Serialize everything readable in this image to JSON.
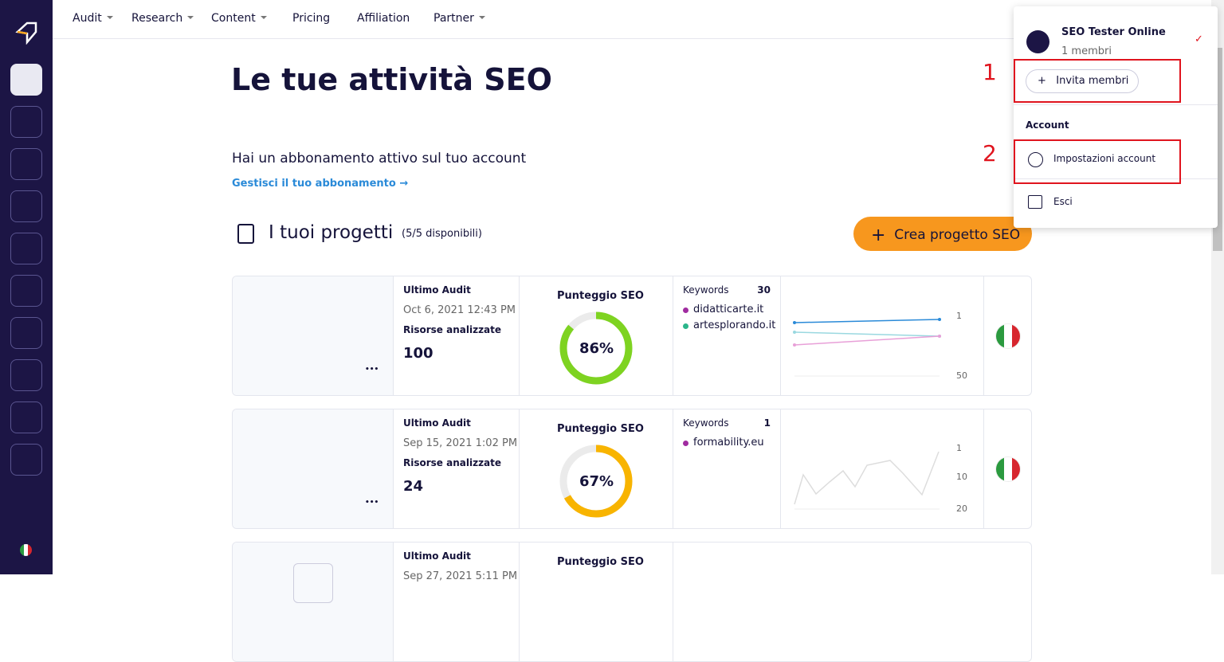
{
  "nav": [
    "Audit",
    "Research",
    "Content",
    "Pricing",
    "Affiliation",
    "Partner"
  ],
  "page": {
    "title": "Le tue attività SEO",
    "subscription_text": "Hai un abbonamento attivo sul tuo account",
    "subscription_link": "Gestisci il tuo abbonamento",
    "projects_title": "I tuoi progetti",
    "projects_count": "(5/5 disponibili)",
    "create_button": "Crea progetto SEO"
  },
  "projects": [
    {
      "audit_label": "Ultimo Audit",
      "audit_date": "Oct 6, 2021 12:43 PM",
      "resources_label": "Risorse analizzate",
      "resources": "100",
      "score_label": "Punteggio SEO",
      "score": "86%",
      "score_color": "#7ed321",
      "keywords_label": "Keywords",
      "keywords_count": "30",
      "domains": [
        "didatticarte.it",
        "artesplorando.it"
      ],
      "chart_ticks": [
        "1",
        "50"
      ]
    },
    {
      "audit_label": "Ultimo Audit",
      "audit_date": "Sep 15, 2021 1:02 PM",
      "resources_label": "Risorse analizzate",
      "resources": "24",
      "score_label": "Punteggio SEO",
      "score": "67%",
      "score_color": "#f8b400",
      "keywords_label": "Keywords",
      "keywords_count": "1",
      "domains": [
        "formability.eu"
      ],
      "chart_ticks": [
        "1",
        "10",
        "20"
      ]
    },
    {
      "audit_label": "Ultimo Audit",
      "audit_date": "Sep 27, 2021 5:11 PM",
      "score_label": "Punteggio SEO"
    }
  ],
  "menu": {
    "workspace": "SEO Tester Online",
    "members": "1 membri",
    "invite": "Invita membri",
    "section": "Account",
    "settings": "Impostazioni account",
    "logout": "Esci",
    "annotation_1": "1",
    "annotation_2": "2"
  }
}
